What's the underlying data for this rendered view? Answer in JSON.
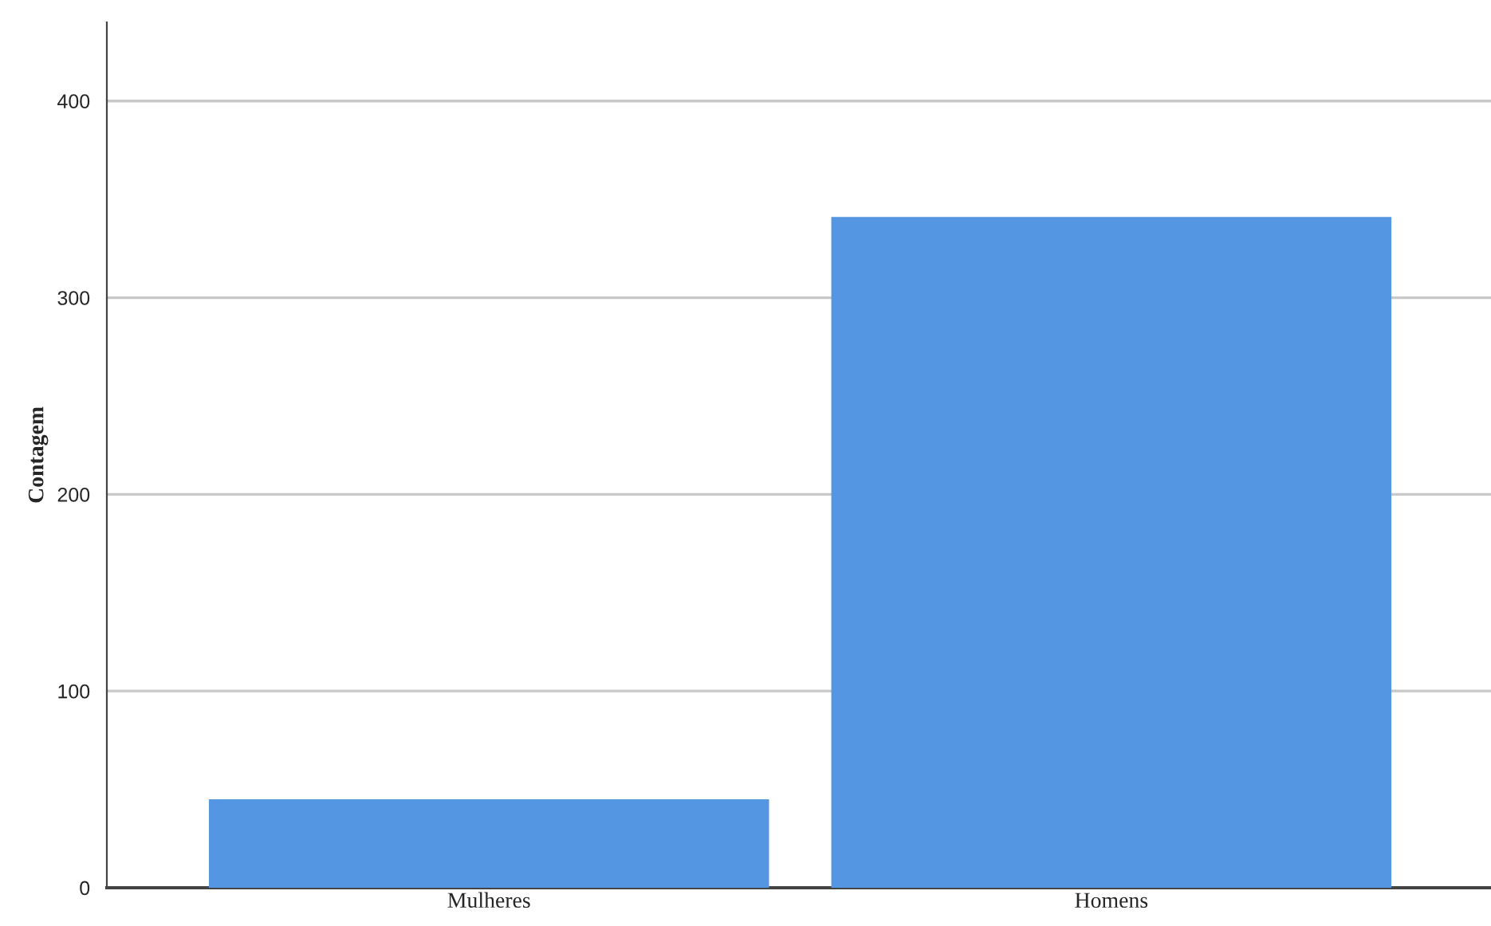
{
  "chart_data": {
    "type": "bar",
    "ylabel": "Contagem",
    "categories": [
      "Mulheres",
      "Homens"
    ],
    "series": [
      {
        "color": "#5596e3",
        "values": [
          45,
          341
        ]
      }
    ],
    "ylim": [
      0,
      440
    ],
    "yticks": [
      0,
      100,
      200,
      300,
      400
    ],
    "grid": "y",
    "legend": false
  }
}
